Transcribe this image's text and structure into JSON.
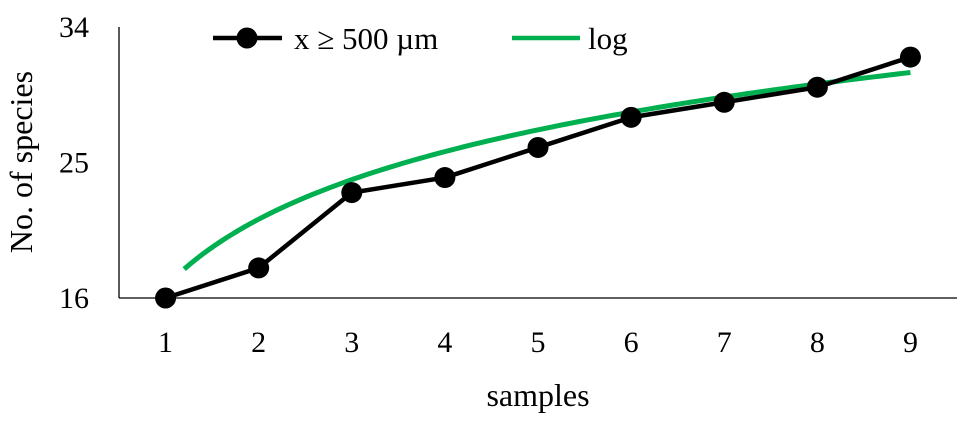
{
  "chart_data": {
    "type": "line",
    "x": [
      1,
      2,
      3,
      4,
      5,
      6,
      7,
      8,
      9
    ],
    "series": [
      {
        "name": "x ≥ 500 µm",
        "values": [
          16,
          18,
          23,
          24,
          26,
          28,
          29,
          30,
          32
        ],
        "color": "#000000",
        "marker": "circle"
      },
      {
        "name": "log",
        "type": "log-fit",
        "color": "#00B050",
        "fit": {
          "a": 16.74,
          "b": 6.48
        },
        "x_range": [
          1.2,
          9
        ]
      }
    ],
    "xlabel": "samples",
    "ylabel": "No. of species",
    "x_ticks": [
      "1",
      "2",
      "3",
      "4",
      "5",
      "6",
      "7",
      "8",
      "9"
    ],
    "y_ticks": [
      "16",
      "25",
      "34"
    ],
    "ylim": [
      16,
      34
    ],
    "xlim": [
      0.5,
      9.5
    ],
    "grid": false,
    "legend_position": "top-left"
  }
}
